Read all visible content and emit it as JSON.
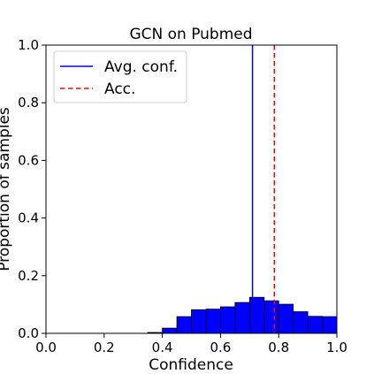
{
  "chart_data": {
    "type": "bar",
    "title": "GCN on Pubmed",
    "xlabel": "Confidence",
    "ylabel": "Proportion of samples",
    "xlim": [
      0.0,
      1.0
    ],
    "ylim": [
      0.0,
      1.0
    ],
    "xticks": [
      "0.0",
      "0.2",
      "0.4",
      "0.6",
      "0.8",
      "1.0"
    ],
    "yticks": [
      "0.0",
      "0.2",
      "0.4",
      "0.6",
      "0.8",
      "1.0"
    ],
    "grid": false,
    "legend": {
      "position": "top-left",
      "entries": [
        {
          "label": "Avg. conf.",
          "style": "solid",
          "color": "#0000ff"
        },
        {
          "label": "Acc.",
          "style": "dashed",
          "color": "#ff0000"
        }
      ]
    },
    "bin_width": 0.05,
    "bins_start": [
      0.35,
      0.4,
      0.45,
      0.5,
      0.55,
      0.6,
      0.65,
      0.7,
      0.75,
      0.8,
      0.85,
      0.9,
      0.95
    ],
    "values": [
      0.003,
      0.018,
      0.058,
      0.082,
      0.084,
      0.092,
      0.107,
      0.125,
      0.113,
      0.101,
      0.075,
      0.059,
      0.058
    ],
    "bar_color": "#0000ff",
    "avg_confidence": 0.71,
    "accuracy": 0.785
  }
}
